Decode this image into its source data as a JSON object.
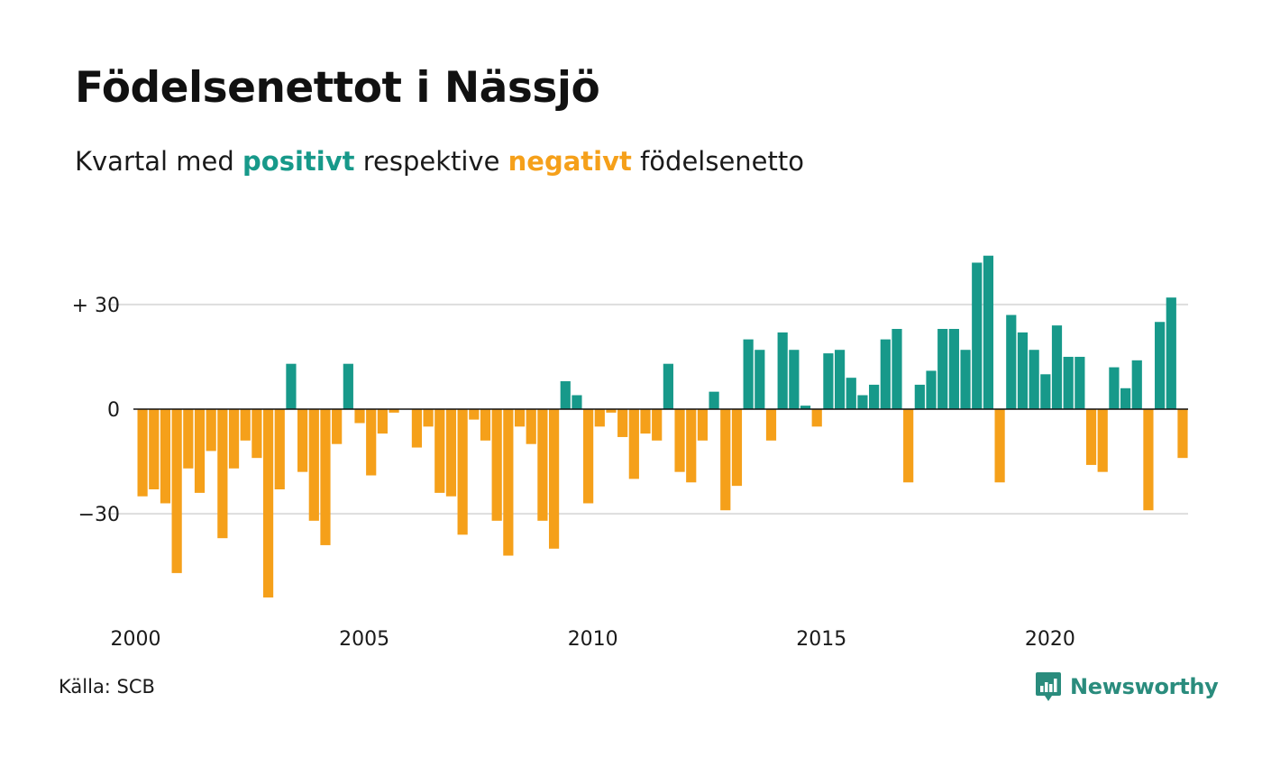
{
  "title": "Födelsenettot i Nässjö",
  "subtitle": {
    "part1": "Kvartal med ",
    "positive_word": "positivt",
    "part2": " respektive ",
    "negative_word": "negativt",
    "part3": " födelsenetto"
  },
  "source": "Källa: SCB",
  "brand": {
    "name": "Newsworthy",
    "icon": "newsworthy-logo-icon"
  },
  "colors": {
    "positive": "#17998a",
    "negative": "#f5a01a",
    "grid": "#dddddd",
    "zero": "#111111",
    "brand": "#2a8c7d"
  },
  "chart_data": {
    "type": "bar",
    "title": "Födelsenettot i Nässjö",
    "xlabel": "",
    "ylabel": "",
    "x_ticks": [
      "2000",
      "2005",
      "2010",
      "2015",
      "2020"
    ],
    "y_ticks": [
      {
        "value": 30,
        "label": "+ 30"
      },
      {
        "value": 0,
        "label": "0"
      },
      {
        "value": -30,
        "label": "−30"
      }
    ],
    "ylim": [
      -55,
      45
    ],
    "grid": true,
    "legend": "none",
    "first_quarter": "2000 Q1",
    "values": [
      -25,
      -23,
      -27,
      -47,
      -17,
      -24,
      -12,
      -37,
      -17,
      -9,
      -14,
      -54,
      -23,
      13,
      -18,
      -32,
      -39,
      -10,
      13,
      -4,
      -19,
      -7,
      -1,
      0,
      -11,
      -5,
      -24,
      -25,
      -36,
      -3,
      -9,
      -32,
      -42,
      -5,
      -10,
      -32,
      -40,
      8,
      4,
      -27,
      -5,
      -1,
      -8,
      -20,
      -7,
      -9,
      13,
      -18,
      -21,
      -9,
      5,
      -29,
      -22,
      20,
      17,
      -9,
      22,
      17,
      1,
      -5,
      16,
      17,
      9,
      4,
      7,
      20,
      23,
      -21,
      7,
      11,
      23,
      23,
      17,
      42,
      44,
      -21,
      27,
      22,
      17,
      10,
      24,
      15,
      15,
      -16,
      -18,
      12,
      6,
      14,
      -29,
      25,
      32,
      -14
    ]
  }
}
